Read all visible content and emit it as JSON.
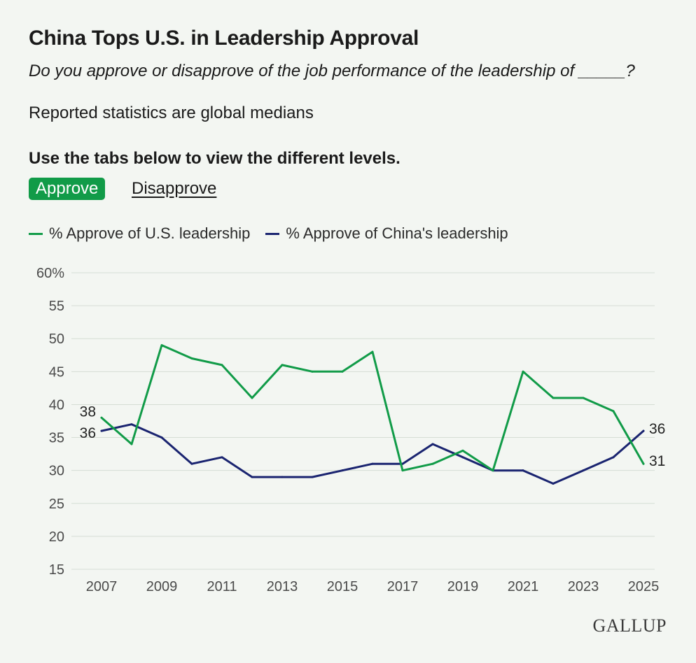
{
  "header": {
    "title": "China Tops U.S. in Leadership Approval",
    "question": "Do you approve or disapprove of the job performance of the leadership of _____?",
    "note": "Reported statistics are global medians",
    "instructions": "Use the tabs below to view the different levels."
  },
  "tabs": [
    {
      "label": "Approve",
      "active": true
    },
    {
      "label": "Disapprove",
      "active": false
    }
  ],
  "logo": "GALLUP",
  "chart_data": {
    "type": "line",
    "title": "",
    "xlabel": "",
    "ylabel": "",
    "x": [
      2007,
      2008,
      2009,
      2010,
      2011,
      2012,
      2013,
      2014,
      2015,
      2016,
      2017,
      2018,
      2019,
      2020,
      2021,
      2022,
      2023,
      2024,
      2025
    ],
    "x_tick_labels": [
      "2007",
      "2009",
      "2011",
      "2013",
      "2015",
      "2017",
      "2019",
      "2021",
      "2023",
      "2025"
    ],
    "ylim": [
      15,
      60
    ],
    "y_tick_labels": [
      "60%",
      "55",
      "50",
      "45",
      "40",
      "35",
      "30",
      "25",
      "20",
      "15"
    ],
    "grid": true,
    "legend_position": "top-left",
    "series": [
      {
        "name": "% Approve of U.S. leadership",
        "color": "#119b48",
        "values": [
          38,
          34,
          49,
          47,
          46,
          41,
          46,
          45,
          45,
          48,
          30,
          31,
          33,
          30,
          45,
          41,
          41,
          39,
          31
        ],
        "start_label": "38",
        "end_label": "31"
      },
      {
        "name": "% Approve of China's leadership",
        "color": "#1a2470",
        "values": [
          36,
          37,
          35,
          31,
          32,
          29,
          29,
          29,
          30,
          31,
          31,
          34,
          32,
          30,
          30,
          28,
          30,
          32,
          36
        ],
        "start_label": "36",
        "end_label": "36"
      }
    ]
  }
}
